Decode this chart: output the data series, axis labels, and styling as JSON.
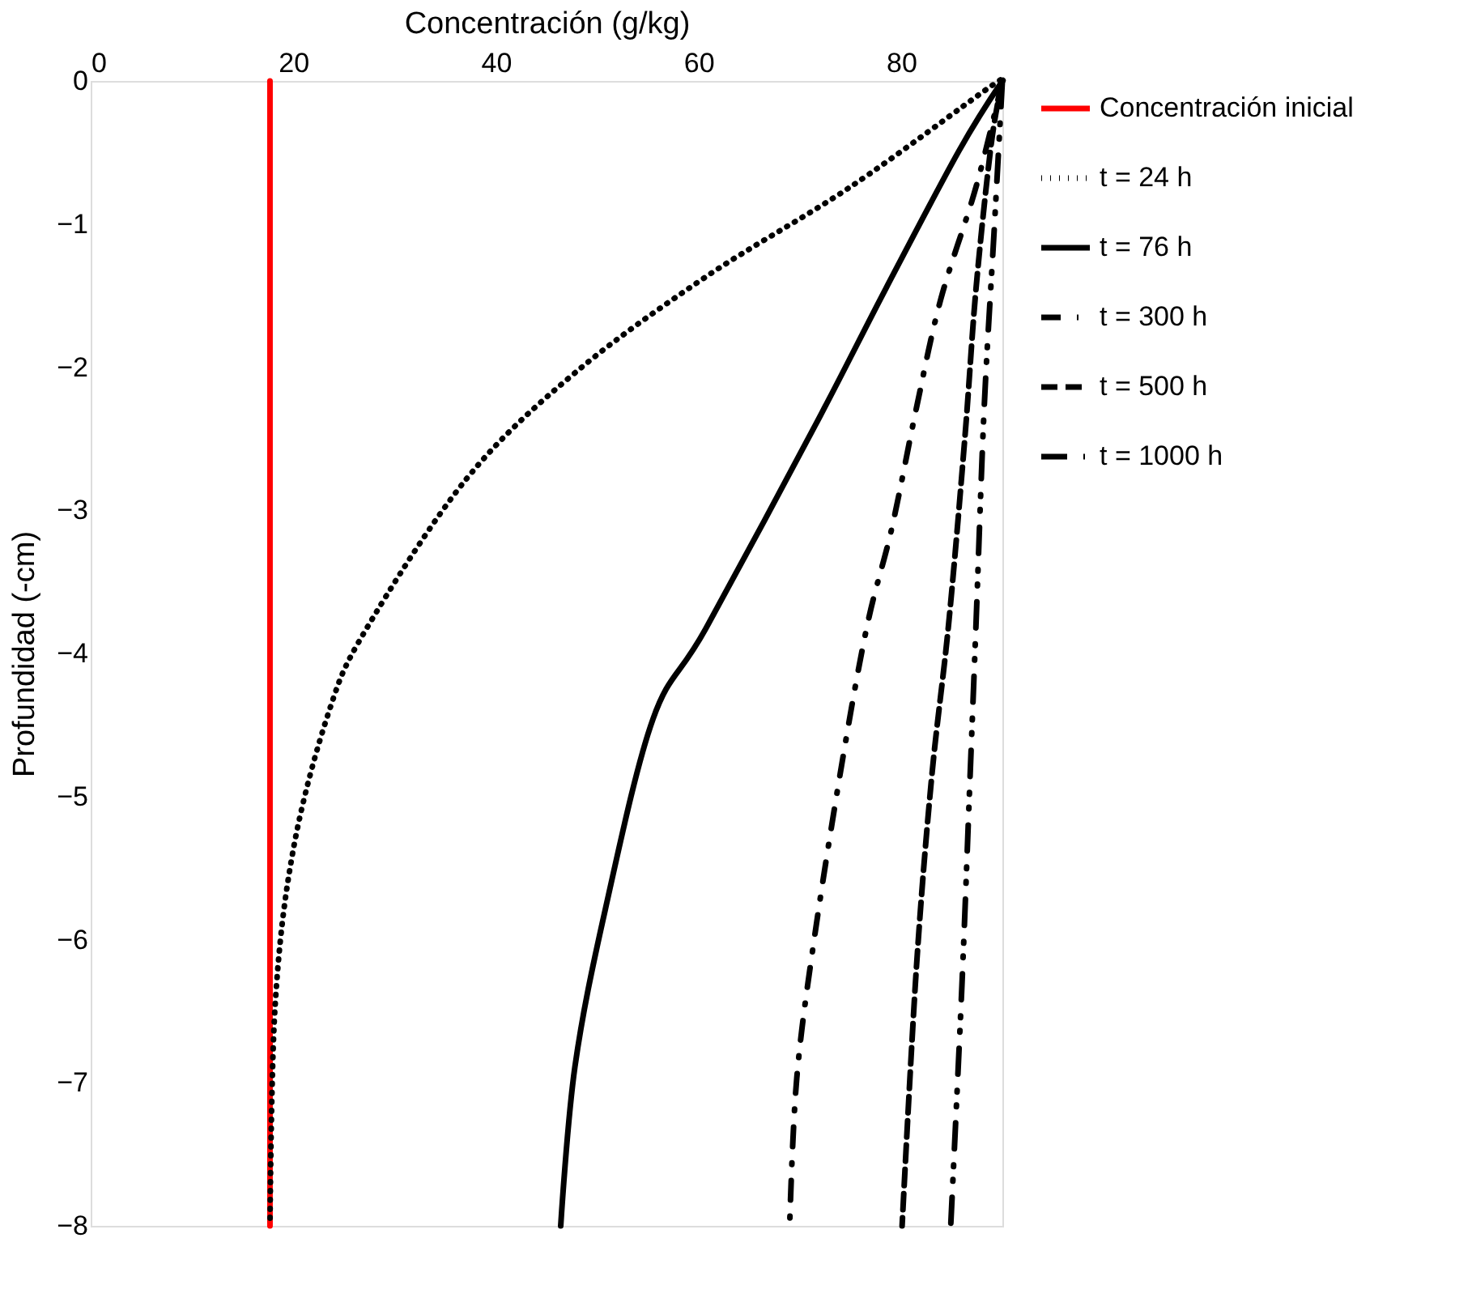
{
  "chart_data": {
    "type": "line",
    "xlabel": "Concentración (g/kg)",
    "ylabel": "Profundidad (-cm)",
    "xlim": [
      0,
      90
    ],
    "xticks": [
      0,
      20,
      40,
      60,
      80
    ],
    "ylim": [
      -8,
      0
    ],
    "yticks": [
      -8,
      -7,
      -6,
      -5,
      -4,
      -3,
      -2,
      -1,
      0
    ],
    "grid": false,
    "legend": "right",
    "marker": "none",
    "series": [
      {
        "name": "Concentración inicial",
        "color": "#ff0000",
        "line_style": "solid",
        "x": [
          17.7,
          17.7
        ],
        "values": [
          0,
          -8
        ]
      },
      {
        "name": "t = 24 h",
        "color": "#000000",
        "line_style": "dotted",
        "x": [
          90,
          88.6,
          75,
          60.7,
          47.8,
          37.1,
          27.2,
          23.5,
          20,
          18.2,
          17.7
        ],
        "values": [
          0,
          -0.05,
          -0.74,
          -1.37,
          -2.04,
          -2.78,
          -3.83,
          -4.41,
          -5.37,
          -6.47,
          -8
        ]
      },
      {
        "name": "t = 76 h",
        "color": "#000000",
        "line_style": "solid",
        "x": [
          90,
          85.7,
          78.5,
          71.5,
          60.7,
          55.5,
          50.8,
          47.8,
          46.4
        ],
        "values": [
          0,
          -0.49,
          -1.45,
          -2.41,
          -3.83,
          -4.46,
          -5.79,
          -6.89,
          -8
        ]
      },
      {
        "name": "t = 300 h",
        "color": "#000000",
        "line_style": "dashed",
        "x": [
          90,
          87.4,
          83.9,
          81.5,
          79.1,
          76.7,
          74.3,
          71.5,
          69.7,
          69
        ],
        "values": [
          0,
          -0.74,
          -1.53,
          -2.29,
          -3.12,
          -3.79,
          -4.71,
          -5.96,
          -6.97,
          -8
        ]
      },
      {
        "name": "t = 500 h",
        "color": "#000000",
        "line_style": "dashed",
        "x": [
          90,
          88.9,
          87.4,
          86.3,
          84.7,
          83,
          81.5,
          80.1
        ],
        "values": [
          0,
          -0.44,
          -1.45,
          -2.49,
          -3.79,
          -4.88,
          -6.21,
          -8
        ]
      },
      {
        "name": "t = 1000 h",
        "color": "#000000",
        "line_style": "dashed",
        "x": [
          90,
          89.2,
          88.2,
          87.4,
          86.8,
          86,
          84.9
        ],
        "values": [
          0,
          -1.03,
          -2.29,
          -3.79,
          -4.88,
          -6.33,
          -8
        ]
      }
    ]
  }
}
